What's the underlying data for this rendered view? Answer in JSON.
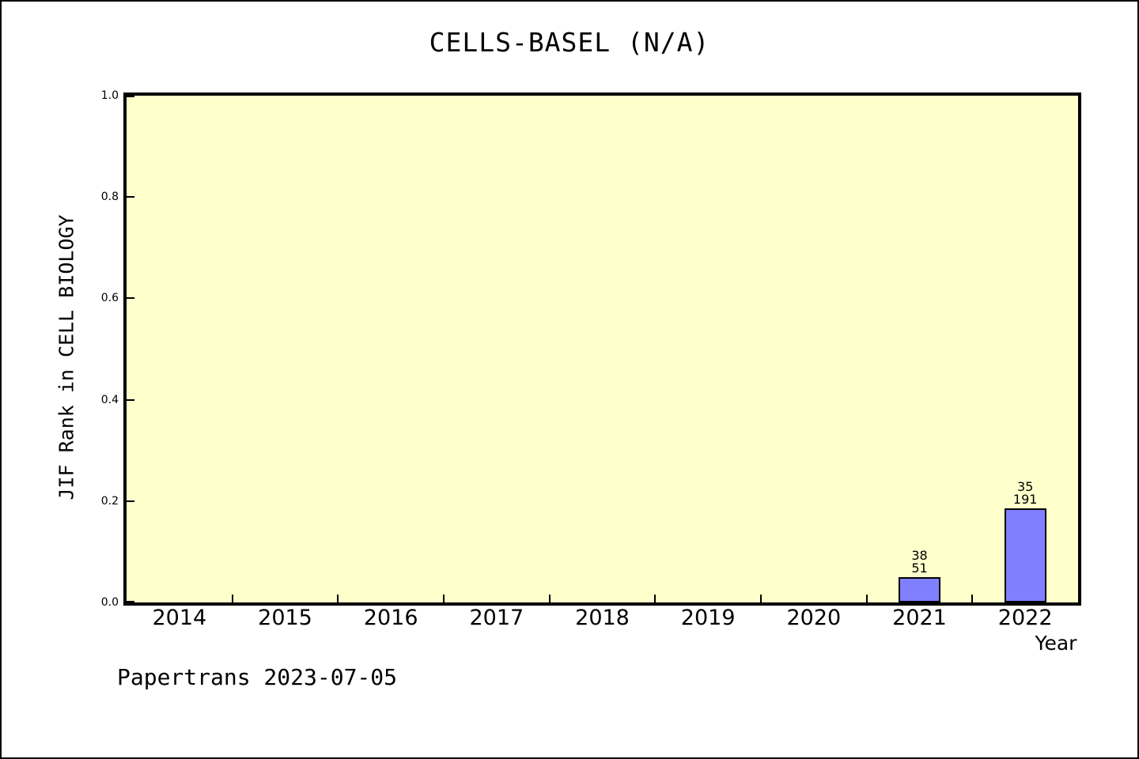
{
  "footer": "Papertrans 2023-07-05",
  "chart_data": {
    "type": "bar",
    "title": "CELLS-BASEL (N/A)",
    "xlabel": "Year",
    "ylabel": "JIF Rank in CELL BIOLOGY",
    "categories": [
      "2014",
      "2015",
      "2016",
      "2017",
      "2018",
      "2019",
      "2020",
      "2021",
      "2022"
    ],
    "ylim": [
      0.0,
      1.0
    ],
    "y_ticks": [
      0.0,
      0.2,
      0.4,
      0.6,
      0.8,
      1.0
    ],
    "grid": false,
    "legend_position": "none",
    "plot_bg_color": "#FFFFCC",
    "bar_color": "#8080FF",
    "bar_edge_color": "#000000",
    "bars": [
      {
        "category": "2021",
        "value": 0.05,
        "annotation_top": "38",
        "annotation_bottom": "51"
      },
      {
        "category": "2022",
        "value": 0.185,
        "annotation_top": "35",
        "annotation_bottom": "191"
      }
    ]
  }
}
